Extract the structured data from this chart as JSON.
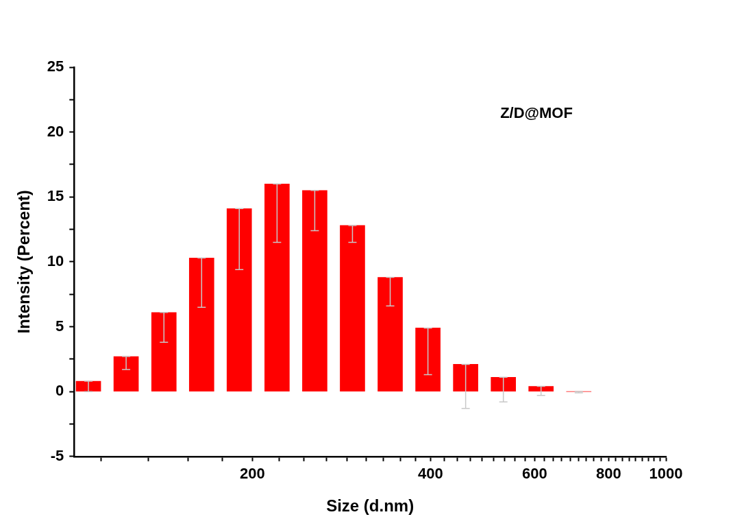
{
  "chart_data": {
    "type": "bar",
    "xlabel": "Size (d.nm)",
    "ylabel": "Intensity (Percent)",
    "annotations": [
      "Z/D@MOF"
    ],
    "log": "x",
    "x": [
      105.7,
      122.4,
      141.8,
      164.2,
      190.1,
      220.2,
      255,
      295.3,
      342,
      396.1,
      458.7,
      531.2,
      615.1,
      712.4
    ],
    "values": [
      0.8,
      2.7,
      6.1,
      10.3,
      14.1,
      16.0,
      15.5,
      12.8,
      8.8,
      4.9,
      2.1,
      1.1,
      0.4,
      0.0
    ],
    "errors": [
      [
        0.0,
        0.8
      ],
      [
        1.7,
        2.7
      ],
      [
        3.8,
        6.1
      ],
      [
        6.5,
        10.3
      ],
      [
        9.4,
        14.1
      ],
      [
        11.5,
        16.0
      ],
      [
        12.4,
        15.5
      ],
      [
        11.5,
        12.8
      ],
      [
        6.6,
        8.8
      ],
      [
        1.3,
        4.9
      ],
      [
        -1.3,
        2.1
      ],
      [
        -0.8,
        1.1
      ],
      [
        -0.3,
        0.4
      ],
      [
        -0.1,
        0.0
      ]
    ],
    "color": "#ff0000",
    "xlim": [
      100,
      1000
    ],
    "xticks": [
      {
        "value": 111.1,
        "label": null
      },
      {
        "value": 133.3,
        "label": null
      },
      {
        "value": 155.6,
        "label": null
      },
      {
        "value": 177.8,
        "label": null
      },
      200,
      {
        "value": 222.2,
        "label": null
      },
      {
        "value": 244.4,
        "label": null
      },
      {
        "value": 266.7,
        "label": null
      },
      {
        "value": 288.9,
        "label": null
      },
      {
        "value": 311.1,
        "label": null
      },
      {
        "value": 333.3,
        "label": null
      },
      {
        "value": 355.6,
        "label": null
      },
      {
        "value": 377.8,
        "label": null
      },
      400,
      {
        "value": 422.2,
        "label": null
      },
      {
        "value": 444.4,
        "label": null
      },
      {
        "value": 466.7,
        "label": null
      },
      {
        "value": 488.9,
        "label": null
      },
      {
        "value": 511.1,
        "label": null
      },
      {
        "value": 533.3,
        "label": null
      },
      {
        "value": 555.6,
        "label": null
      },
      {
        "value": 577.8,
        "label": null
      },
      600,
      {
        "value": 622.2,
        "label": null
      },
      {
        "value": 644.4,
        "label": null
      },
      {
        "value": 666.7,
        "label": null
      },
      {
        "value": 688.9,
        "label": null
      },
      {
        "value": 711.1,
        "label": null
      },
      {
        "value": 733.3,
        "label": null
      },
      {
        "value": 755.6,
        "label": null
      },
      {
        "value": 777.8,
        "label": null
      },
      800,
      {
        "value": 822.2,
        "label": null
      },
      {
        "value": 844.4,
        "label": null
      },
      {
        "value": 866.7,
        "label": null
      },
      {
        "value": 888.9,
        "label": null
      },
      {
        "value": 911.1,
        "label": null
      },
      {
        "value": 933.3,
        "label": null
      },
      {
        "value": 955.6,
        "label": null
      },
      {
        "value": 977.8,
        "label": null
      },
      1000
    ],
    "ylim": [
      -5,
      25
    ],
    "yticks": [
      -5,
      {
        "value": -2.5,
        "label": null
      },
      0,
      {
        "value": 2.5,
        "label": null
      },
      5,
      {
        "value": 7.5,
        "label": null
      },
      10,
      {
        "value": 12.5,
        "label": null
      },
      15,
      {
        "value": 17.5,
        "label": null
      },
      20,
      {
        "value": 22.5,
        "label": null
      },
      25
    ]
  }
}
